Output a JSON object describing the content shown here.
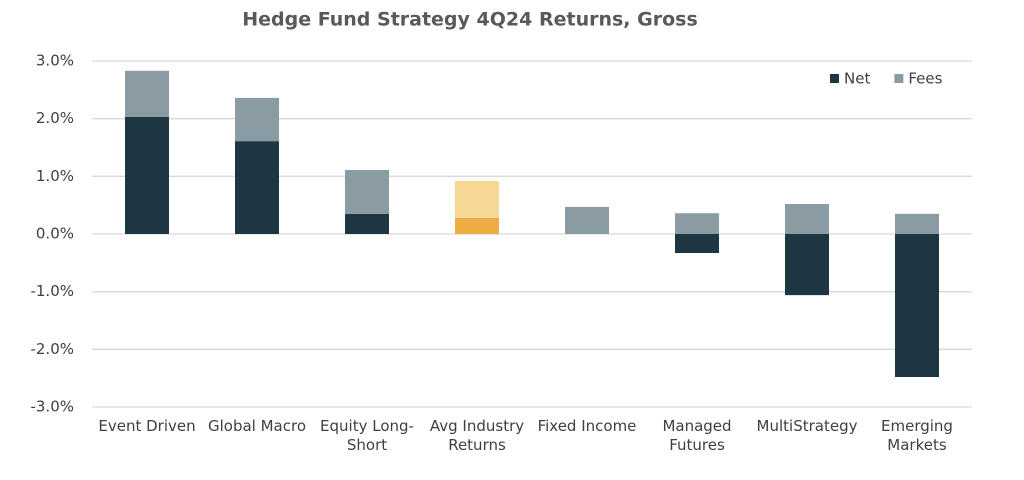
{
  "chart_data": {
    "type": "stacked-bar",
    "title": "Hedge Fund Strategy 4Q24 Returns, Gross",
    "categories": [
      "Event Driven",
      "Global Macro",
      "Equity Long-Short",
      "Avg Industry Returns",
      "Fixed Income",
      "Managed Futures",
      "MultiStrategy",
      "Emerging Markets"
    ],
    "series": [
      {
        "name": "Net",
        "color": "#1c3642",
        "colors": [
          "#1c3642",
          "#1c3642",
          "#1c3642",
          "#eeac45",
          "#1c3642",
          "#1c3642",
          "#1c3642",
          "#1c3642"
        ],
        "values": [
          2.03,
          1.61,
          0.35,
          0.28,
          0,
          -0.33,
          -1.06,
          -2.48
        ]
      },
      {
        "name": "Fees",
        "color": "#8b9ba3",
        "colors": [
          "#8b9ba3",
          "#8b9ba3",
          "#8b9ba3",
          "#f6d794",
          "#8b9ba3",
          "#8b9ba3",
          "#8b9ba3",
          "#8b9ba3"
        ],
        "values": [
          0.8,
          0.75,
          0.76,
          0.64,
          0.47,
          0.36,
          0.52,
          0.35
        ]
      }
    ],
    "ylim": [
      -3,
      3
    ],
    "yticks": [
      {
        "value": 3,
        "label": "3.0%"
      },
      {
        "value": 2,
        "label": "2.0%"
      },
      {
        "value": 1,
        "label": "1.0%"
      },
      {
        "value": 0,
        "label": "0.0%"
      },
      {
        "value": -1,
        "label": "-1.0%"
      },
      {
        "value": -2,
        "label": "-2.0%"
      },
      {
        "value": -3,
        "label": "-3.0%"
      }
    ],
    "grid": true,
    "legend": "top-right"
  }
}
